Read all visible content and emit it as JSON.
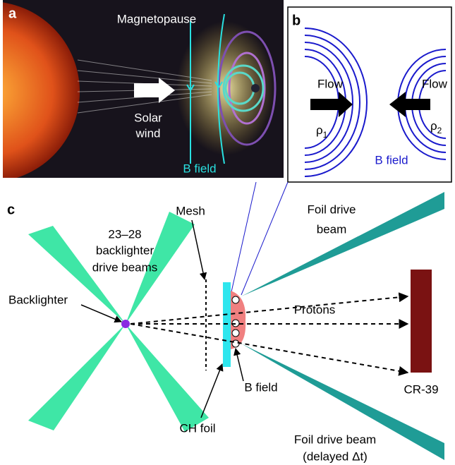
{
  "panel_a": {
    "label": "a",
    "magnetopause": "Magnetopause",
    "solar_wind": [
      "Solar",
      "wind"
    ],
    "b_field": "B field"
  },
  "panel_b": {
    "label": "b",
    "flow_left": "Flow",
    "flow_right": "Flow",
    "rho1": {
      "symbol": "ρ",
      "sub": "1"
    },
    "rho2": {
      "symbol": "ρ",
      "sub": "2"
    },
    "b_field": "B field"
  },
  "panel_c": {
    "label": "c",
    "mesh": "Mesh",
    "backlighter_beams": [
      "23–28",
      "backlighter",
      "drive beams"
    ],
    "foil_drive_beam": [
      "Foil drive",
      "beam"
    ],
    "backlighter": "Backlighter",
    "protons": "Protons",
    "b_field": "B field",
    "cr39": "CR-39",
    "ch_foil": "CH foil",
    "foil_drive_beam_delayed": [
      "Foil drive beam",
      "(delayed Δt)"
    ]
  }
}
